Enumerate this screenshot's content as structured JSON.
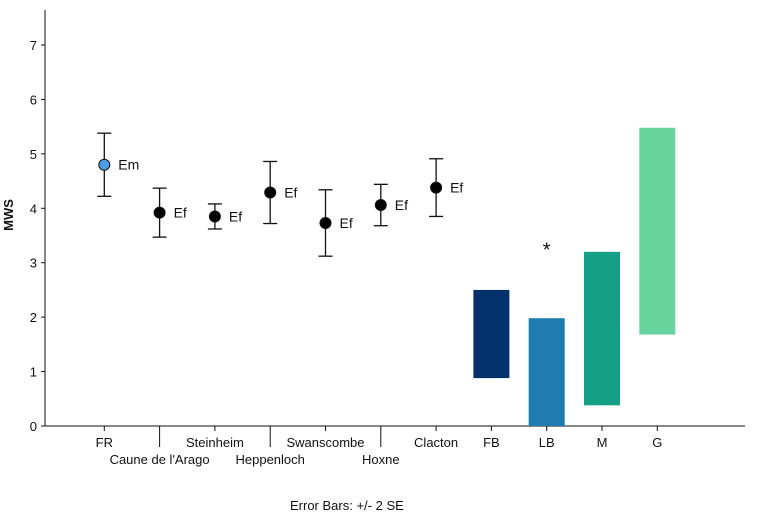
{
  "chart_data": {
    "type": "scatter",
    "title": "",
    "xlabel": "",
    "ylabel": "MWS",
    "ylim": [
      0,
      7
    ],
    "yticks": [
      0,
      1,
      2,
      3,
      4,
      5,
      6,
      7
    ],
    "footnote": "Error Bars: +/- 2 SE",
    "categories": [
      "FR",
      "Caune de l'Arago",
      "Steinheim",
      "Heppenloch",
      "Swanscombe",
      "Hoxne",
      "Clacton",
      "FB",
      "LB",
      "M",
      "G"
    ],
    "points": [
      {
        "category": "FR",
        "mean": 4.8,
        "low": 4.22,
        "high": 5.38,
        "label": "Em",
        "color": "#4a9ee3"
      },
      {
        "category": "Caune de l'Arago",
        "mean": 3.92,
        "low": 3.47,
        "high": 4.37,
        "label": "Ef",
        "color": "#000000"
      },
      {
        "category": "Steinheim",
        "mean": 3.85,
        "low": 3.62,
        "high": 4.08,
        "label": "Ef",
        "color": "#000000"
      },
      {
        "category": "Heppenloch",
        "mean": 4.29,
        "low": 3.72,
        "high": 4.86,
        "label": "Ef",
        "color": "#000000"
      },
      {
        "category": "Swanscombe",
        "mean": 3.73,
        "low": 3.12,
        "high": 4.34,
        "label": "Ef",
        "color": "#000000"
      },
      {
        "category": "Hoxne",
        "mean": 4.06,
        "low": 3.68,
        "high": 4.44,
        "label": "Ef",
        "color": "#000000"
      },
      {
        "category": "Clacton",
        "mean": 4.38,
        "low": 3.85,
        "high": 4.91,
        "label": "Ef",
        "color": "#000000"
      }
    ],
    "ranges": [
      {
        "category": "FB",
        "low": 0.88,
        "high": 2.5,
        "color": "#04306b"
      },
      {
        "category": "LB",
        "low": 0.0,
        "high": 1.98,
        "color": "#1f7bb0"
      },
      {
        "category": "M",
        "low": 0.38,
        "high": 3.2,
        "color": "#15a085"
      },
      {
        "category": "G",
        "low": 1.68,
        "high": 5.48,
        "color": "#68d39d"
      }
    ],
    "annotations": [
      {
        "text": "*",
        "category": "LB",
        "y": 3.3
      }
    ]
  }
}
